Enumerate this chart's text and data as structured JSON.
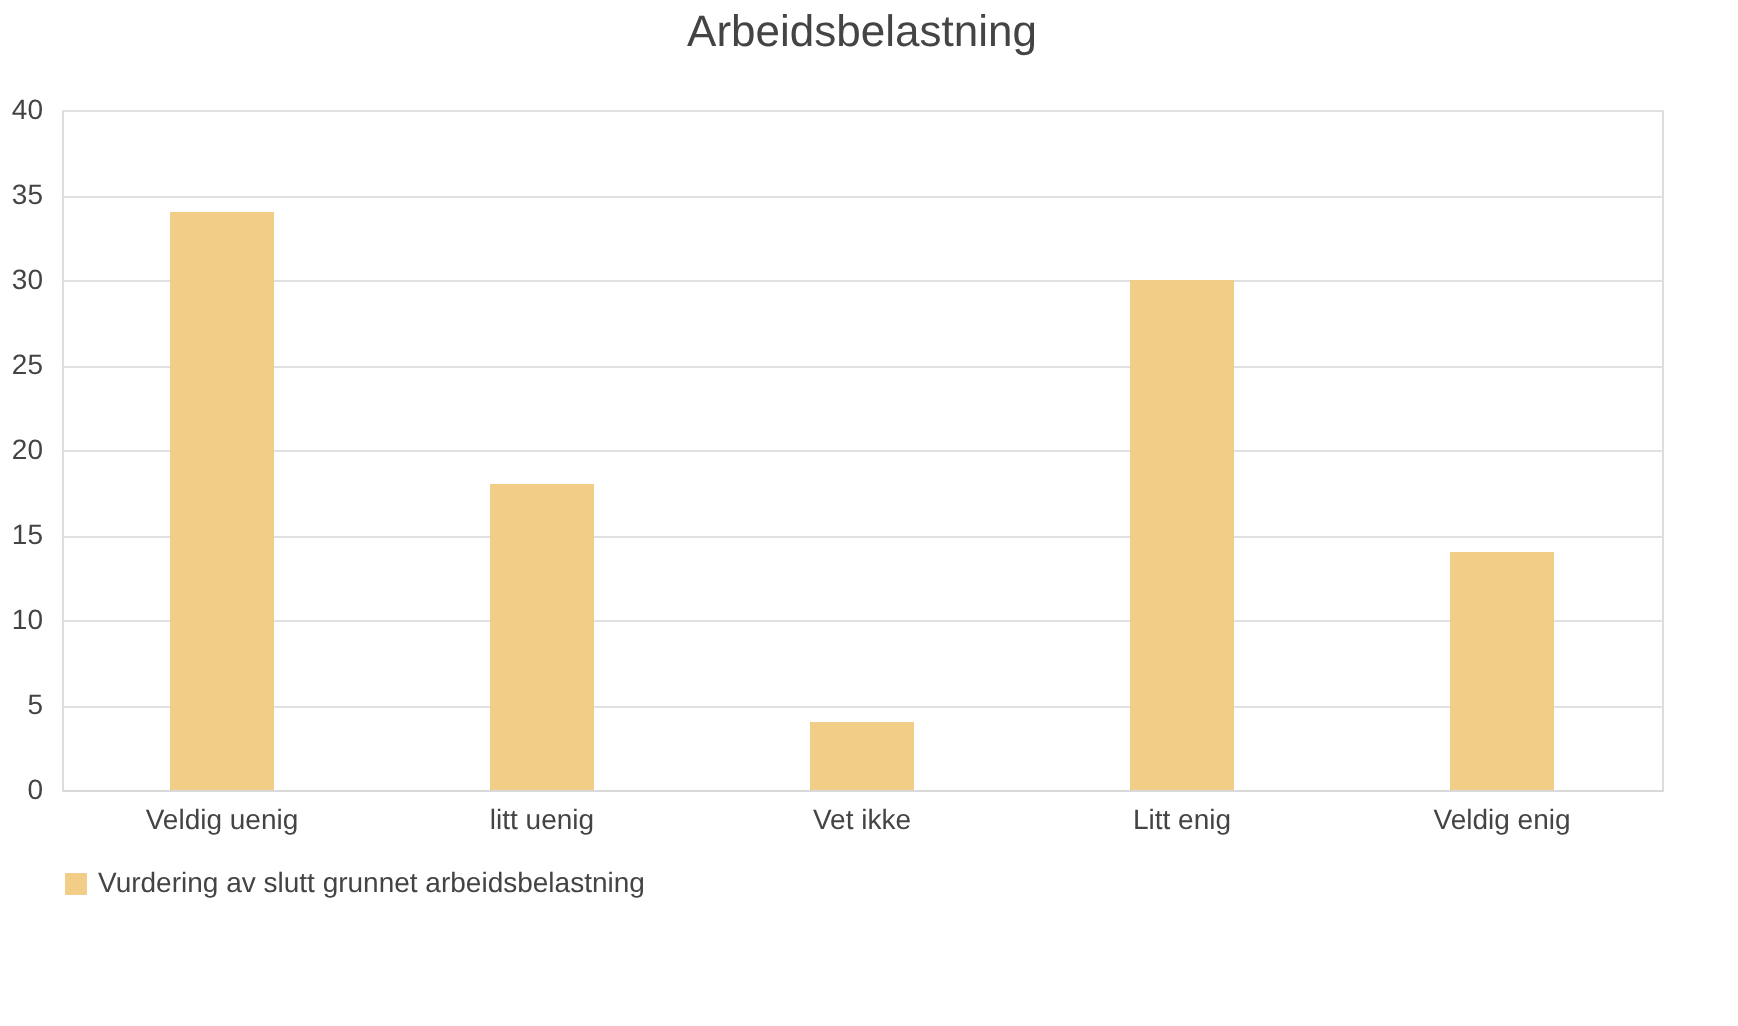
{
  "chart_data": {
    "type": "bar",
    "title": "Arbeidsbelastning",
    "categories": [
      "Veldig uenig",
      "litt uenig",
      "Vet ikke",
      "Litt enig",
      "Veldig enig"
    ],
    "series": [
      {
        "name": "Vurdering av slutt grunnet arbeidsbelastning",
        "color": "#f2cd88",
        "values": [
          34,
          18,
          4,
          30,
          14
        ]
      }
    ],
    "ylim": [
      0,
      40
    ],
    "yticks": [
      0,
      5,
      10,
      15,
      20,
      25,
      30,
      35,
      40
    ],
    "grid": "y",
    "legend": "bottom"
  }
}
